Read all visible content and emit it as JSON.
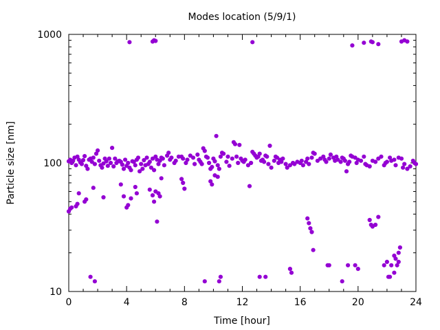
{
  "chart_data": {
    "type": "scatter",
    "title": "Modes location (5/9/1)",
    "xlabel": "Time [hour]",
    "ylabel": "Particle size [nm]",
    "xlim": [
      0,
      24
    ],
    "ylim": [
      10,
      1000
    ],
    "yscale": "log",
    "xticks": [
      0,
      4,
      8,
      12,
      16,
      20,
      24
    ],
    "yticks": [
      10,
      100,
      1000
    ],
    "grid": false,
    "marker_color": "#9400d3",
    "series": [
      {
        "points": [
          [
            0.0,
            42
          ],
          [
            0.1,
            44
          ],
          [
            0.2,
            45
          ],
          [
            0.5,
            46
          ],
          [
            0.6,
            48
          ],
          [
            0.7,
            58
          ],
          [
            1.1,
            50
          ],
          [
            1.2,
            52
          ],
          [
            1.7,
            64
          ],
          [
            2.4,
            54
          ],
          [
            3.6,
            68
          ],
          [
            3.8,
            55
          ],
          [
            4.0,
            45
          ],
          [
            4.1,
            47
          ],
          [
            4.3,
            53
          ],
          [
            4.6,
            65
          ],
          [
            4.7,
            58
          ],
          [
            5.6,
            62
          ],
          [
            5.8,
            56
          ],
          [
            5.9,
            50
          ],
          [
            6.0,
            60
          ],
          [
            6.1,
            35
          ],
          [
            6.2,
            58
          ],
          [
            6.3,
            55
          ],
          [
            6.4,
            76
          ],
          [
            7.8,
            75
          ],
          [
            7.9,
            70
          ],
          [
            8.0,
            63
          ],
          [
            9.8,
            72
          ],
          [
            9.9,
            68
          ],
          [
            10.1,
            80
          ],
          [
            10.3,
            78
          ],
          [
            12.5,
            66
          ],
          [
            0.0,
            103
          ],
          [
            0.1,
            106
          ],
          [
            0.2,
            100
          ],
          [
            0.3,
            104
          ],
          [
            0.4,
            110
          ],
          [
            0.5,
            96
          ],
          [
            0.6,
            112
          ],
          [
            0.7,
            106
          ],
          [
            0.8,
            101
          ],
          [
            0.9,
            98
          ],
          [
            1.0,
            105
          ],
          [
            1.1,
            113
          ],
          [
            1.2,
            95
          ],
          [
            1.3,
            90
          ],
          [
            1.4,
            106
          ],
          [
            1.5,
            108
          ],
          [
            1.6,
            102
          ],
          [
            1.7,
            110
          ],
          [
            1.8,
            98
          ],
          [
            1.9,
            118
          ],
          [
            2.0,
            125
          ],
          [
            2.1,
            104
          ],
          [
            2.2,
            96
          ],
          [
            2.3,
            92
          ],
          [
            2.4,
            99
          ],
          [
            2.5,
            108
          ],
          [
            2.6,
            103
          ],
          [
            2.7,
            95
          ],
          [
            2.8,
            108
          ],
          [
            2.9,
            100
          ],
          [
            3.0,
            131
          ],
          [
            3.1,
            94
          ],
          [
            3.2,
            108
          ],
          [
            3.3,
            100
          ],
          [
            3.4,
            103
          ],
          [
            3.5,
            104
          ],
          [
            3.6,
            102
          ],
          [
            3.7,
            97
          ],
          [
            3.8,
            90
          ],
          [
            3.9,
            106
          ],
          [
            4.0,
            95
          ],
          [
            4.1,
            100
          ],
          [
            4.2,
            92
          ],
          [
            4.3,
            88
          ],
          [
            4.4,
            103
          ],
          [
            4.5,
            102
          ],
          [
            4.6,
            96
          ],
          [
            4.7,
            106
          ],
          [
            4.8,
            110
          ],
          [
            4.9,
            86
          ],
          [
            5.0,
            98
          ],
          [
            5.1,
            90
          ],
          [
            5.2,
            105
          ],
          [
            5.3,
            96
          ],
          [
            5.4,
            110
          ],
          [
            5.5,
            98
          ],
          [
            5.6,
            102
          ],
          [
            5.7,
            92
          ],
          [
            5.8,
            108
          ],
          [
            5.9,
            88
          ],
          [
            6.0,
            112
          ],
          [
            6.1,
            106
          ],
          [
            6.2,
            98
          ],
          [
            6.3,
            104
          ],
          [
            6.4,
            110
          ],
          [
            6.5,
            108
          ],
          [
            6.6,
            96
          ],
          [
            6.8,
            114
          ],
          [
            6.9,
            120
          ],
          [
            7.0,
            106
          ],
          [
            7.1,
            110
          ],
          [
            7.3,
            100
          ],
          [
            7.4,
            104
          ],
          [
            7.6,
            112
          ],
          [
            7.8,
            112
          ],
          [
            7.9,
            108
          ],
          [
            8.1,
            100
          ],
          [
            8.2,
            106
          ],
          [
            8.4,
            114
          ],
          [
            8.6,
            110
          ],
          [
            8.7,
            98
          ],
          [
            8.9,
            116
          ],
          [
            9.0,
            106
          ],
          [
            9.1,
            102
          ],
          [
            9.2,
            98
          ],
          [
            9.3,
            130
          ],
          [
            9.4,
            124
          ],
          [
            9.5,
            112
          ],
          [
            9.6,
            110
          ],
          [
            9.7,
            100
          ],
          [
            9.8,
            90
          ],
          [
            9.9,
            93
          ],
          [
            10.0,
            108
          ],
          [
            10.1,
            103
          ],
          [
            10.2,
            162
          ],
          [
            10.3,
            96
          ],
          [
            10.4,
            90
          ],
          [
            10.5,
            112
          ],
          [
            10.6,
            120
          ],
          [
            10.7,
            118
          ],
          [
            10.9,
            102
          ],
          [
            11.0,
            112
          ],
          [
            11.1,
            95
          ],
          [
            11.3,
            108
          ],
          [
            11.4,
            145
          ],
          [
            11.5,
            140
          ],
          [
            11.6,
            112
          ],
          [
            11.7,
            100
          ],
          [
            11.8,
            138
          ],
          [
            11.9,
            108
          ],
          [
            12.0,
            104
          ],
          [
            12.1,
            102
          ],
          [
            12.2,
            106
          ],
          [
            12.4,
            96
          ],
          [
            12.6,
            100
          ],
          [
            12.7,
            122
          ],
          [
            12.8,
            118
          ],
          [
            12.9,
            114
          ],
          [
            13.0,
            110
          ],
          [
            13.1,
            112
          ],
          [
            13.2,
            118
          ],
          [
            13.3,
            104
          ],
          [
            13.4,
            106
          ],
          [
            13.5,
            102
          ],
          [
            13.6,
            114
          ],
          [
            13.7,
            112
          ],
          [
            13.8,
            98
          ],
          [
            13.9,
            136
          ],
          [
            14.0,
            92
          ],
          [
            14.2,
            104
          ],
          [
            14.3,
            112
          ],
          [
            14.4,
            110
          ],
          [
            14.5,
            100
          ],
          [
            14.6,
            106
          ],
          [
            14.7,
            102
          ],
          [
            14.8,
            108
          ],
          [
            15.0,
            98
          ],
          [
            15.1,
            92
          ],
          [
            15.3,
            96
          ],
          [
            15.5,
            100
          ],
          [
            15.6,
            98
          ],
          [
            15.8,
            102
          ],
          [
            16.0,
            100
          ],
          [
            16.1,
            104
          ],
          [
            16.2,
            96
          ],
          [
            16.4,
            102
          ],
          [
            16.5,
            108
          ],
          [
            16.6,
            98
          ],
          [
            16.8,
            110
          ],
          [
            16.9,
            120
          ],
          [
            17.0,
            118
          ],
          [
            17.2,
            104
          ],
          [
            17.4,
            108
          ],
          [
            17.6,
            112
          ],
          [
            17.7,
            106
          ],
          [
            17.8,
            102
          ],
          [
            18.0,
            108
          ],
          [
            18.1,
            116
          ],
          [
            18.3,
            110
          ],
          [
            18.4,
            104
          ],
          [
            18.5,
            112
          ],
          [
            18.6,
            106
          ],
          [
            18.8,
            102
          ],
          [
            18.9,
            110
          ],
          [
            19.0,
            108
          ],
          [
            19.1,
            104
          ],
          [
            19.2,
            86
          ],
          [
            19.3,
            98
          ],
          [
            19.4,
            102
          ],
          [
            19.5,
            114
          ],
          [
            19.6,
            112
          ],
          [
            19.8,
            110
          ],
          [
            19.9,
            100
          ],
          [
            20.0,
            106
          ],
          [
            20.2,
            104
          ],
          [
            20.4,
            112
          ],
          [
            20.5,
            98
          ],
          [
            20.6,
            96
          ],
          [
            20.8,
            94
          ],
          [
            21.0,
            104
          ],
          [
            21.2,
            102
          ],
          [
            21.4,
            108
          ],
          [
            21.6,
            112
          ],
          [
            21.8,
            96
          ],
          [
            21.9,
            100
          ],
          [
            22.0,
            102
          ],
          [
            22.2,
            110
          ],
          [
            22.3,
            104
          ],
          [
            22.5,
            106
          ],
          [
            22.6,
            96
          ],
          [
            22.8,
            110
          ],
          [
            23.0,
            108
          ],
          [
            23.1,
            92
          ],
          [
            23.2,
            98
          ],
          [
            23.4,
            90
          ],
          [
            23.6,
            94
          ],
          [
            23.8,
            104
          ],
          [
            23.9,
            100
          ],
          [
            24.0,
            98
          ],
          [
            4.2,
            870
          ],
          [
            5.8,
            880
          ],
          [
            5.9,
            900
          ],
          [
            6.0,
            890
          ],
          [
            12.7,
            870
          ],
          [
            19.6,
            820
          ],
          [
            20.4,
            860
          ],
          [
            20.9,
            880
          ],
          [
            21.0,
            870
          ],
          [
            21.4,
            840
          ],
          [
            23.0,
            880
          ],
          [
            23.2,
            900
          ],
          [
            23.4,
            880
          ],
          [
            16.5,
            37
          ],
          [
            16.6,
            34
          ],
          [
            16.7,
            31
          ],
          [
            16.8,
            29
          ],
          [
            16.9,
            21
          ],
          [
            20.8,
            36
          ],
          [
            20.9,
            33
          ],
          [
            21.0,
            32
          ],
          [
            21.2,
            33
          ],
          [
            21.4,
            38
          ],
          [
            22.5,
            19
          ],
          [
            22.6,
            18
          ],
          [
            22.8,
            20
          ],
          [
            22.9,
            22
          ],
          [
            1.5,
            13
          ],
          [
            1.8,
            12
          ],
          [
            9.4,
            12
          ],
          [
            10.4,
            12
          ],
          [
            10.5,
            13
          ],
          [
            13.2,
            13
          ],
          [
            13.6,
            13
          ],
          [
            15.3,
            15
          ],
          [
            15.4,
            14
          ],
          [
            17.9,
            16
          ],
          [
            18.0,
            16
          ],
          [
            18.9,
            12
          ],
          [
            19.3,
            16
          ],
          [
            19.8,
            16
          ],
          [
            20.0,
            15
          ],
          [
            21.8,
            16
          ],
          [
            22.0,
            17
          ],
          [
            22.1,
            13
          ],
          [
            22.2,
            13
          ],
          [
            22.3,
            16
          ],
          [
            22.5,
            14
          ],
          [
            22.7,
            16
          ],
          [
            22.8,
            17
          ]
        ]
      }
    ]
  }
}
